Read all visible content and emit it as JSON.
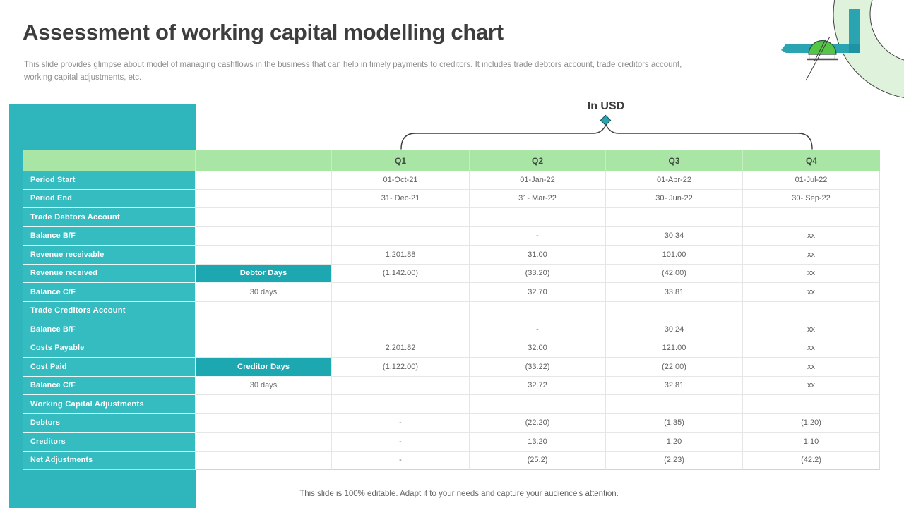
{
  "slide": {
    "title": "Assessment of working capital modelling chart",
    "subtitle": "This slide provides glimpse about model of managing cashflows in the business that can help in timely payments to creditors. It includes trade debtors account, trade creditors account, working capital adjustments, etc.",
    "unit_label": "In USD",
    "footer": "This slide is 100% editable. Adapt it to your needs and capture your audience's attention."
  },
  "table": {
    "column_headers": [
      "Q1",
      "Q2",
      "Q3",
      "Q4"
    ],
    "rows": [
      {
        "label": "Period Start",
        "section": false,
        "days": "",
        "days_type": "none",
        "values": [
          "01-Oct-21",
          "01-Jan-22",
          "01-Apr-22",
          "01-Jul-22"
        ]
      },
      {
        "label": "Period End",
        "section": false,
        "days": "",
        "days_type": "none",
        "values": [
          "31- Dec-21",
          "31- Mar-22",
          "30- Jun-22",
          "30- Sep-22"
        ]
      },
      {
        "label": "Trade Debtors Account",
        "section": true,
        "days": "",
        "days_type": "none",
        "values": [
          "",
          "",
          "",
          ""
        ]
      },
      {
        "label": "Balance B/F",
        "section": false,
        "days": "",
        "days_type": "none",
        "values": [
          "",
          "-",
          "30.34",
          "xx"
        ]
      },
      {
        "label": "Revenue receivable",
        "section": false,
        "days": "",
        "days_type": "none",
        "values": [
          "1,201.88",
          "31.00",
          "101.00",
          "xx"
        ]
      },
      {
        "label": "Revenue received",
        "section": false,
        "days": "Debtor Days",
        "days_type": "header",
        "values": [
          "(1,142.00)",
          "(33.20)",
          "(42.00)",
          "xx"
        ]
      },
      {
        "label": "Balance C/F",
        "section": false,
        "days": "30 days",
        "days_type": "plain",
        "values": [
          "",
          "32.70",
          "33.81",
          "xx"
        ]
      },
      {
        "label": "Trade Creditors Account",
        "section": true,
        "days": "",
        "days_type": "none",
        "values": [
          "",
          "",
          "",
          ""
        ]
      },
      {
        "label": "Balance B/F",
        "section": false,
        "days": "",
        "days_type": "none",
        "values": [
          "",
          "-",
          "30.24",
          "xx"
        ]
      },
      {
        "label": "Costs Payable",
        "section": false,
        "days": "",
        "days_type": "none",
        "values": [
          "2,201.82",
          "32.00",
          "121.00",
          "xx"
        ]
      },
      {
        "label": "Cost Paid",
        "section": false,
        "days": "Creditor Days",
        "days_type": "header",
        "values": [
          "(1,122.00)",
          "(33.22)",
          "(22.00)",
          "xx"
        ]
      },
      {
        "label": "Balance C/F",
        "section": false,
        "days": "30 days",
        "days_type": "plain",
        "values": [
          "",
          "32.72",
          "32.81",
          "xx"
        ]
      },
      {
        "label": "Working Capital Adjustments",
        "section": true,
        "days": "",
        "days_type": "none",
        "values": [
          "",
          "",
          "",
          ""
        ]
      },
      {
        "label": "Debtors",
        "section": false,
        "days": "",
        "days_type": "none",
        "values": [
          "-",
          "(22.20)",
          "(1.35)",
          "(1.20)"
        ]
      },
      {
        "label": "Creditors",
        "section": false,
        "days": "",
        "days_type": "none",
        "values": [
          "-",
          "13.20",
          "1.20",
          "1.10"
        ]
      },
      {
        "label": "Net Adjustments",
        "section": false,
        "days": "",
        "days_type": "none",
        "values": [
          "-",
          "(25.2)",
          "(2.23)",
          "(42.2)"
        ]
      }
    ]
  },
  "colors": {
    "panel_teal": "#2FB6BC",
    "cell_teal": "#35BCC1",
    "days_teal": "#1CA7B1",
    "header_green": "#A9E5A4",
    "header_sep": "#C6EEC2",
    "accent_teal": "#2AA4B0",
    "dome_green": "#55C546",
    "ring_green": "#DFF3DC"
  }
}
